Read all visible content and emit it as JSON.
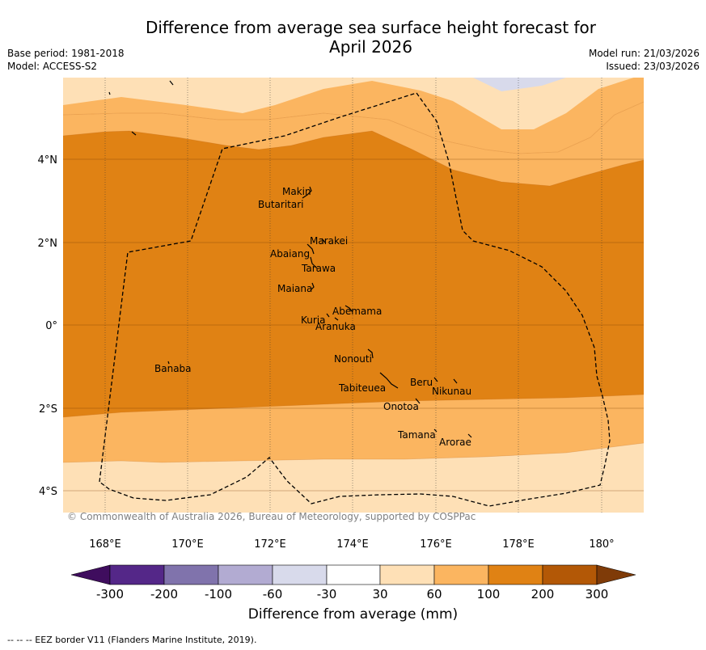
{
  "title_line1": "Difference from average sea surface height forecast for",
  "title_line2": "April 2026",
  "base_period": "Base period: 1981-2018",
  "model": "Model: ACCESS-S2",
  "model_run": "Model run: 21/03/2026",
  "issued": "Issued: 23/03/2026",
  "copyright": "© Commonwealth of Australia 2026, Bureau of Meteorology, supported by COSPPac",
  "footer_note": "--  --  -- EEZ border V11 (Flanders Marine Institute, 2019).",
  "colorbar": {
    "label": "Difference from average (mm)",
    "ticks": [
      "-300",
      "-200",
      "-100",
      "-60",
      "-30",
      "30",
      "60",
      "100",
      "200",
      "300"
    ],
    "colors": {
      "below_min": "#3f0d5e",
      "b1": "#542788",
      "b2": "#8073ac",
      "b3": "#b2abd2",
      "b4": "#d8daeb",
      "b5": "#ffffff",
      "b6": "#fee0b6",
      "b7": "#fbb560",
      "b8": "#e08214",
      "b9": "#b35806",
      "above_max": "#7f3b08"
    }
  },
  "axes": {
    "lon_ticks": [
      "168°E",
      "170°E",
      "172°E",
      "174°E",
      "176°E",
      "178°E",
      "180°"
    ],
    "lat_ticks": [
      "4°N",
      "2°N",
      "0°",
      "2°S",
      "4°S"
    ]
  },
  "places": [
    {
      "name": "Makin"
    },
    {
      "name": "Butaritari"
    },
    {
      "name": "Marakei"
    },
    {
      "name": "Abaiang"
    },
    {
      "name": "Tarawa"
    },
    {
      "name": "Maiana"
    },
    {
      "name": "Abemama"
    },
    {
      "name": "Kuria"
    },
    {
      "name": "Aranuka"
    },
    {
      "name": "Nonouti"
    },
    {
      "name": "Banaba"
    },
    {
      "name": "Tabiteuea"
    },
    {
      "name": "Beru"
    },
    {
      "name": "Nikunau"
    },
    {
      "name": "Onotoa"
    },
    {
      "name": "Tamana"
    },
    {
      "name": "Arorae"
    }
  ]
}
